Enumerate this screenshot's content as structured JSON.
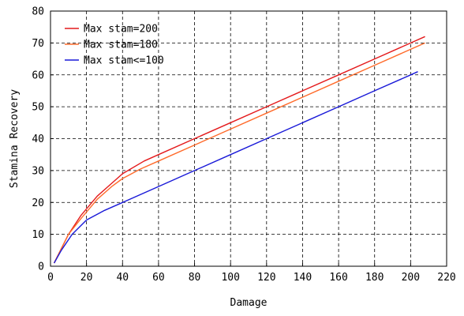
{
  "chart_data": {
    "type": "line",
    "xlabel": "Damage",
    "ylabel": "Stamina Recovery",
    "xlim": [
      0,
      220
    ],
    "ylim": [
      0,
      80
    ],
    "xticks": [
      0,
      20,
      40,
      60,
      80,
      100,
      120,
      140,
      160,
      180,
      200,
      220
    ],
    "yticks": [
      0,
      10,
      20,
      30,
      40,
      50,
      60,
      70,
      80
    ],
    "grid": true,
    "legend": "top-left",
    "series": [
      {
        "name": "Max stam=200",
        "color": "#e41a1c",
        "points": [
          [
            2,
            1
          ],
          [
            10,
            10
          ],
          [
            17,
            16
          ],
          [
            26,
            22
          ],
          [
            34,
            26
          ],
          [
            40,
            29
          ],
          [
            52,
            33
          ],
          [
            60,
            35
          ],
          [
            80,
            40
          ],
          [
            100,
            45
          ],
          [
            120,
            50
          ],
          [
            140,
            55
          ],
          [
            160,
            60
          ],
          [
            180,
            65
          ],
          [
            200,
            70
          ],
          [
            208,
            72
          ]
        ]
      },
      {
        "name": "Max stam=180",
        "color": "#ff6a2a",
        "points": [
          [
            2,
            1
          ],
          [
            10,
            10
          ],
          [
            17,
            15
          ],
          [
            26,
            21
          ],
          [
            34,
            25
          ],
          [
            40,
            27.5
          ],
          [
            50,
            30.5
          ],
          [
            60,
            33
          ],
          [
            80,
            38
          ],
          [
            100,
            43
          ],
          [
            120,
            48
          ],
          [
            140,
            53
          ],
          [
            160,
            58
          ],
          [
            180,
            63
          ],
          [
            200,
            68
          ],
          [
            208,
            70
          ]
        ]
      },
      {
        "name": "Max stam<=100",
        "color": "#1a1ad8",
        "points": [
          [
            2,
            1
          ],
          [
            6,
            5
          ],
          [
            12,
            10
          ],
          [
            20,
            14.5
          ],
          [
            30,
            17.5
          ],
          [
            40,
            20
          ],
          [
            60,
            25
          ],
          [
            80,
            30
          ],
          [
            100,
            35
          ],
          [
            120,
            40
          ],
          [
            140,
            45
          ],
          [
            160,
            50
          ],
          [
            180,
            55
          ],
          [
            200,
            60
          ],
          [
            204,
            61
          ]
        ]
      }
    ]
  }
}
